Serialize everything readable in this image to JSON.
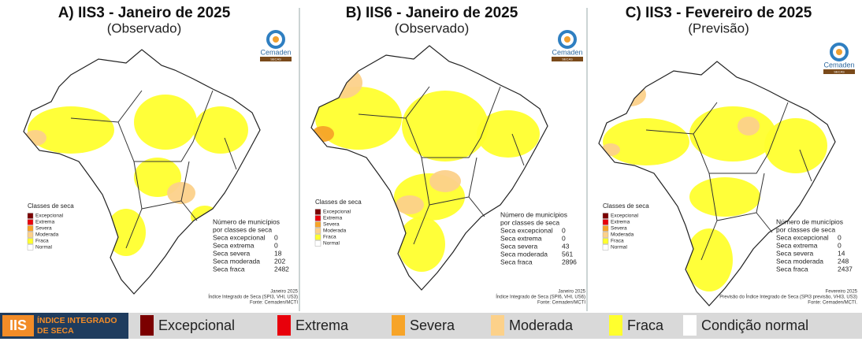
{
  "panels": [
    {
      "title": "A) IIS3 - Janeiro de 2025",
      "subtitle": "(Observado)",
      "logo": "Cemaden",
      "logo_sub": "SECAS",
      "legend_title": "Classes de seca",
      "legend_items": [
        "Excepcional",
        "Extrema",
        "Severa",
        "Moderada",
        "Fraca",
        "Normal"
      ],
      "table_title": [
        "Número de municípios",
        "por classes de seca"
      ],
      "rows": [
        [
          "Seca excepcional",
          0
        ],
        [
          "Seca extrema",
          0
        ],
        [
          "Seca severa",
          18
        ],
        [
          "Seca moderada",
          202
        ],
        [
          "Seca fraca",
          2482
        ]
      ],
      "footer": [
        "Janeiro 2025",
        "Índice Integrado de Seca (SPI3, VHI, US3)",
        "Fonte: Cemaden/MCTI"
      ]
    },
    {
      "title": "B) IIS6 - Janeiro de 2025",
      "subtitle": "(Observado)",
      "logo": "Cemaden",
      "logo_sub": "SECAS",
      "legend_title": "Classes de seca",
      "legend_items": [
        "Excepcional",
        "Extrema",
        "Severa",
        "Moderada",
        "Fraca",
        "Normal"
      ],
      "table_title": [
        "Número de municípios",
        "por classes de seca"
      ],
      "rows": [
        [
          "Seca excepcional",
          0
        ],
        [
          "Seca extrema",
          0
        ],
        [
          "Seca severa",
          43
        ],
        [
          "Seca moderada",
          561
        ],
        [
          "Seca fraca",
          2896
        ]
      ],
      "footer": [
        "Janeiro 2025",
        "Índice Integrado de Seca (SPI6, VHI, US6)",
        "Fonte: Cemaden/MCTI"
      ]
    },
    {
      "title": "C) IIS3 - Fevereiro de 2025",
      "subtitle": "(Previsão)",
      "logo": "Cemaden",
      "logo_sub": "SECAS",
      "legend_title": "Classes de seca",
      "legend_items": [
        "Excepcional",
        "Extrema",
        "Severa",
        "Moderada",
        "Fraca",
        "Normal"
      ],
      "table_title": [
        "Número de municípios",
        "por classes de seca"
      ],
      "rows": [
        [
          "Seca excepcional",
          0
        ],
        [
          "Seca extrema",
          0
        ],
        [
          "Seca severa",
          14
        ],
        [
          "Seca moderada",
          248
        ],
        [
          "Seca fraca",
          2437
        ]
      ],
      "footer": [
        "Fevereiro 2025",
        "Previsão do Índice Integrado de Seca (SPI3 previsão, VHI3, US3)",
        "Fonte: Cemaden/MCTI."
      ]
    }
  ],
  "legend": {
    "badge": "IIS",
    "badge_text": [
      "ÍNDICE INTEGRADO",
      "DE SECA"
    ],
    "items": [
      {
        "label": "Excepcional",
        "color": "#7b0000"
      },
      {
        "label": "Extrema",
        "color": "#e8000b"
      },
      {
        "label": "Severa",
        "color": "#f7a428"
      },
      {
        "label": "Moderada",
        "color": "#fcd18a"
      },
      {
        "label": "Fraca",
        "color": "#ffff2e"
      },
      {
        "label": "Condição normal",
        "color": "#ffffff"
      }
    ]
  }
}
